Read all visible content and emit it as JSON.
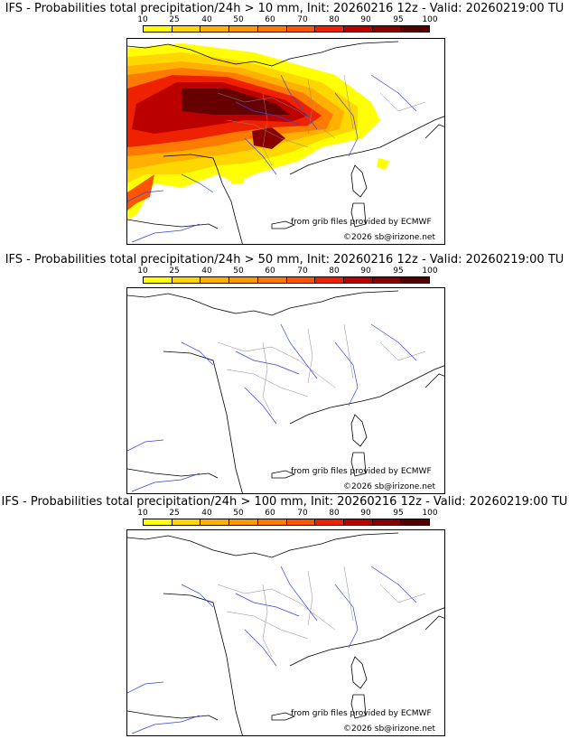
{
  "legend": {
    "ticks": [
      "10",
      "25",
      "40",
      "50",
      "60",
      "70",
      "80",
      "90",
      "95",
      "100"
    ],
    "colors": [
      "#ffff00",
      "#ffd700",
      "#ffb000",
      "#ff9900",
      "#ff7a00",
      "#ff5500",
      "#ee2200",
      "#bb0000",
      "#880000",
      "#550000"
    ]
  },
  "credits": {
    "source": "from grib files provided by ECMWF",
    "copyright": "©2026 sb@irizone.net"
  },
  "panels": [
    {
      "title": "IFS - Probabilities total precipitation/24h > 10 mm, Init: 20260216 12z - Valid: 20260219:00 TU"
    },
    {
      "title": "IFS - Probabilities total precipitation/24h > 50 mm, Init: 20260216 12z - Valid: 20260219:00 TU"
    },
    {
      "title": "IFS - Probabilities total precipitation/24h > 100 mm, Init: 20260216 12z - Valid: 20260219:00 TU"
    }
  ]
}
